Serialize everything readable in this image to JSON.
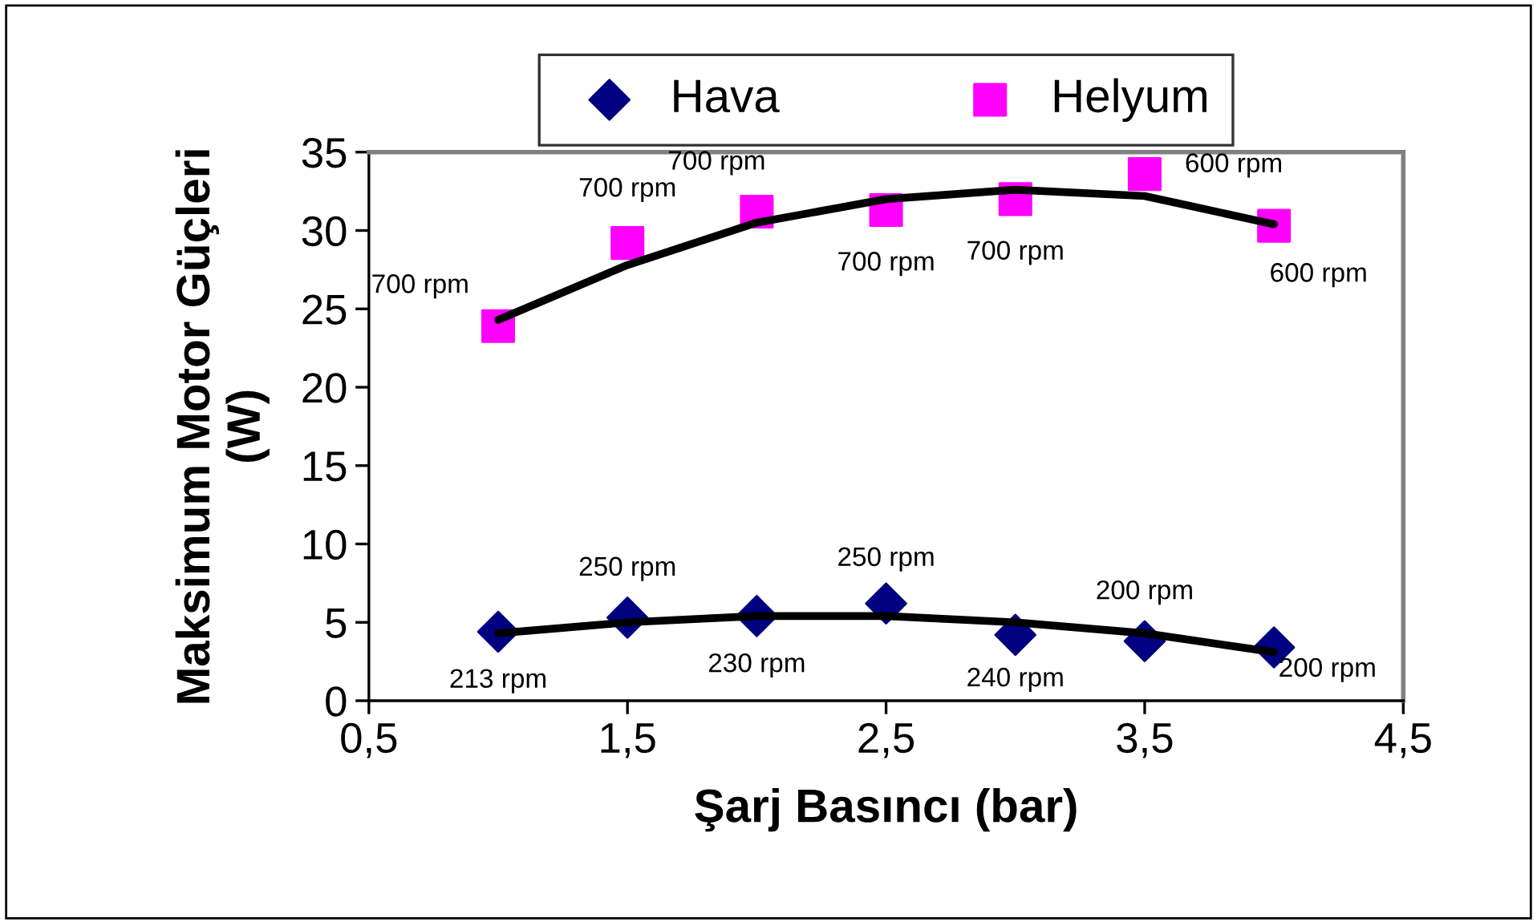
{
  "chart_data": {
    "type": "scatter",
    "xlabel": "Şarj Basıncı (bar)",
    "ylabel": "Maksimum Motor Güçleri\n(W)",
    "x": [
      1,
      1.5,
      2,
      2.5,
      3,
      3.5,
      4
    ],
    "series": [
      {
        "name": "Hava",
        "color": "#000080",
        "marker": "diamond",
        "values": [
          4.4,
          5.3,
          5.4,
          6.2,
          4.2,
          3.8,
          3.4
        ]
      },
      {
        "name": "Helyum",
        "color": "#ff00ff",
        "marker": "square",
        "values": [
          23.9,
          29.2,
          31.2,
          31.3,
          32.0,
          33.6,
          30.3
        ]
      },
      {
        "type": "line",
        "color": "#000000",
        "values": [
          4.3,
          5.0,
          5.4,
          5.4,
          5.0,
          4.3,
          3.1
        ]
      },
      {
        "type": "line",
        "color": "#000000",
        "values": [
          24.3,
          27.8,
          30.5,
          32.0,
          32.6,
          32.2,
          30.4
        ]
      }
    ],
    "annotations": [
      {
        "text": "213 rpm",
        "x": 1,
        "y": 4.4
      },
      {
        "text": "250 rpm",
        "x": 1.5,
        "y": 5.3
      },
      {
        "text": "230 rpm",
        "x": 2,
        "y": 5.4
      },
      {
        "text": "250 rpm",
        "x": 2.5,
        "y": 6.2
      },
      {
        "text": "240 rpm",
        "x": 3,
        "y": 4.2
      },
      {
        "text": "200 rpm",
        "x": 3.5,
        "y": 3.8
      },
      {
        "text": "200 rpm",
        "x": 4,
        "y": 3.4
      },
      {
        "text": "700 rpm",
        "x": 1,
        "y": 23.9
      },
      {
        "text": "700 rpm",
        "x": 1.5,
        "y": 29.2
      },
      {
        "text": "700 rpm",
        "x": 2,
        "y": 31.2
      },
      {
        "text": "700 rpm",
        "x": 2.5,
        "y": 31.3
      },
      {
        "text": "700 rpm",
        "x": 3,
        "y": 32.0
      },
      {
        "text": "600 rpm",
        "x": 3.5,
        "y": 33.6
      },
      {
        "text": "600 rpm",
        "x": 4,
        "y": 30.3
      }
    ],
    "xlim": [
      0.5,
      4.5
    ],
    "xticks": [
      {
        "value": 0.5,
        "label": "0,5"
      },
      {
        "value": 1.5,
        "label": "1,5"
      },
      {
        "value": 2.5,
        "label": "2,5"
      },
      {
        "value": 3.5,
        "label": "3,5"
      },
      {
        "value": 4.5,
        "label": "4,5"
      }
    ],
    "ylim": [
      0,
      35
    ],
    "yticks": [
      0,
      5,
      10,
      15,
      20,
      25,
      30,
      35
    ],
    "legend": "top",
    "grid": false
  }
}
